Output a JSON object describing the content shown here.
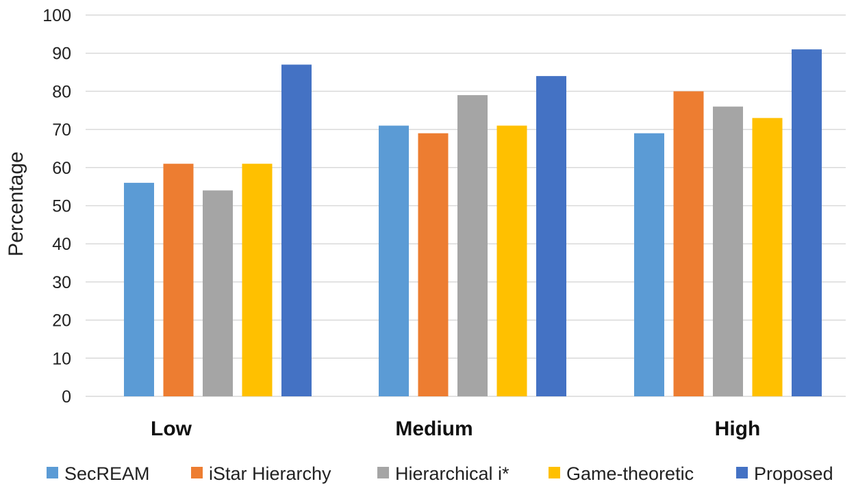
{
  "chart_data": {
    "type": "bar",
    "title": "",
    "xlabel": "",
    "ylabel": "Percentage",
    "ylim": [
      0,
      100
    ],
    "yticks": [
      0,
      10,
      20,
      30,
      40,
      50,
      60,
      70,
      80,
      90,
      100
    ],
    "grid": "horizontal",
    "legend": "bottom",
    "categories": [
      "Low",
      "Medium",
      "High"
    ],
    "series": [
      {
        "name": "SecREAM",
        "color": "#5b9bd5",
        "values": [
          56,
          71,
          69
        ]
      },
      {
        "name": "iStar Hierarchy",
        "color": "#ed7d31",
        "values": [
          61,
          69,
          80
        ]
      },
      {
        "name": "Hierarchical i*",
        "color": "#a5a5a5",
        "values": [
          54,
          79,
          76
        ]
      },
      {
        "name": "Game-theoretic",
        "color": "#ffc000",
        "values": [
          61,
          71,
          73
        ]
      },
      {
        "name": "Proposed",
        "color": "#4472c4",
        "values": [
          87,
          84,
          91
        ]
      }
    ]
  }
}
